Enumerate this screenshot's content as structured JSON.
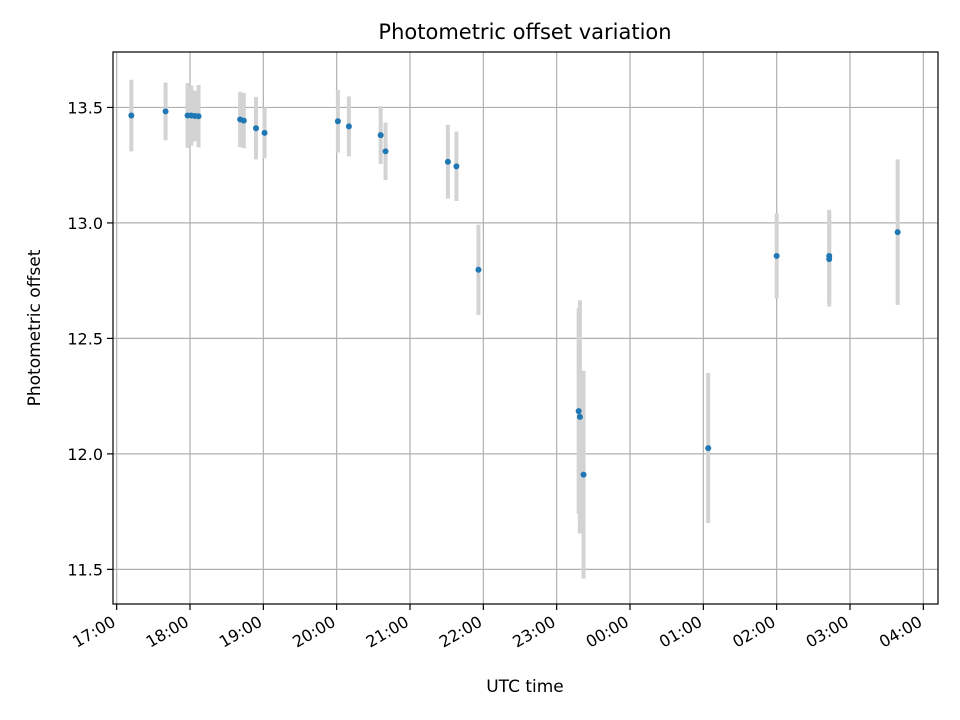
{
  "chart_data": {
    "type": "scatter",
    "title": "Photometric offset variation",
    "xlabel": "UTC time",
    "ylabel": "Photometric offset",
    "grid": true,
    "legend": "none",
    "x_ticks": [
      "17:00",
      "18:00",
      "19:00",
      "20:00",
      "21:00",
      "22:00",
      "23:00",
      "00:00",
      "01:00",
      "02:00",
      "03:00",
      "04:00"
    ],
    "y_ticks": [
      "11.5",
      "12.0",
      "12.5",
      "13.0",
      "13.5"
    ],
    "xlim": [
      "16:57",
      "04:12"
    ],
    "ylim": [
      11.35,
      13.74
    ],
    "colors": {
      "point": "#1f77b4",
      "errorbar": "#d3d3d3",
      "grid": "#b0b0b0",
      "axis": "#000000"
    },
    "points": [
      {
        "x": "17:12",
        "y": 13.465,
        "yerr": 0.155
      },
      {
        "x": "17:40",
        "y": 13.483,
        "yerr": 0.125
      },
      {
        "x": "17:58",
        "y": 13.465,
        "yerr": 0.14
      },
      {
        "x": "18:01",
        "y": 13.465,
        "yerr": 0.13
      },
      {
        "x": "18:04",
        "y": 13.463,
        "yerr": 0.11
      },
      {
        "x": "18:07",
        "y": 13.462,
        "yerr": 0.135
      },
      {
        "x": "18:41",
        "y": 13.448,
        "yerr": 0.12
      },
      {
        "x": "18:44",
        "y": 13.443,
        "yerr": 0.12
      },
      {
        "x": "18:54",
        "y": 13.41,
        "yerr": 0.135
      },
      {
        "x": "19:01",
        "y": 13.39,
        "yerr": 0.11
      },
      {
        "x": "20:01",
        "y": 13.44,
        "yerr": 0.135
      },
      {
        "x": "20:10",
        "y": 13.418,
        "yerr": 0.13
      },
      {
        "x": "20:36",
        "y": 13.38,
        "yerr": 0.125
      },
      {
        "x": "20:40",
        "y": 13.31,
        "yerr": 0.125
      },
      {
        "x": "21:31",
        "y": 13.265,
        "yerr": 0.16
      },
      {
        "x": "21:38",
        "y": 13.245,
        "yerr": 0.15
      },
      {
        "x": "21:56",
        "y": 12.797,
        "yerr": 0.195
      },
      {
        "x": "23:18",
        "y": 12.185,
        "yerr": 0.445
      },
      {
        "x": "23:19",
        "y": 12.16,
        "yerr": 0.505
      },
      {
        "x": "23:22",
        "y": 11.91,
        "yerr": 0.45
      },
      {
        "x": "01:04",
        "y": 12.025,
        "yerr": 0.325
      },
      {
        "x": "02:00",
        "y": 12.857,
        "yerr": 0.185
      },
      {
        "x": "02:43",
        "y": 12.857,
        "yerr": 0.2
      },
      {
        "x": "02:43",
        "y": 12.843,
        "yerr": 0.205
      },
      {
        "x": "03:39",
        "y": 12.96,
        "yerr": 0.315
      }
    ]
  }
}
